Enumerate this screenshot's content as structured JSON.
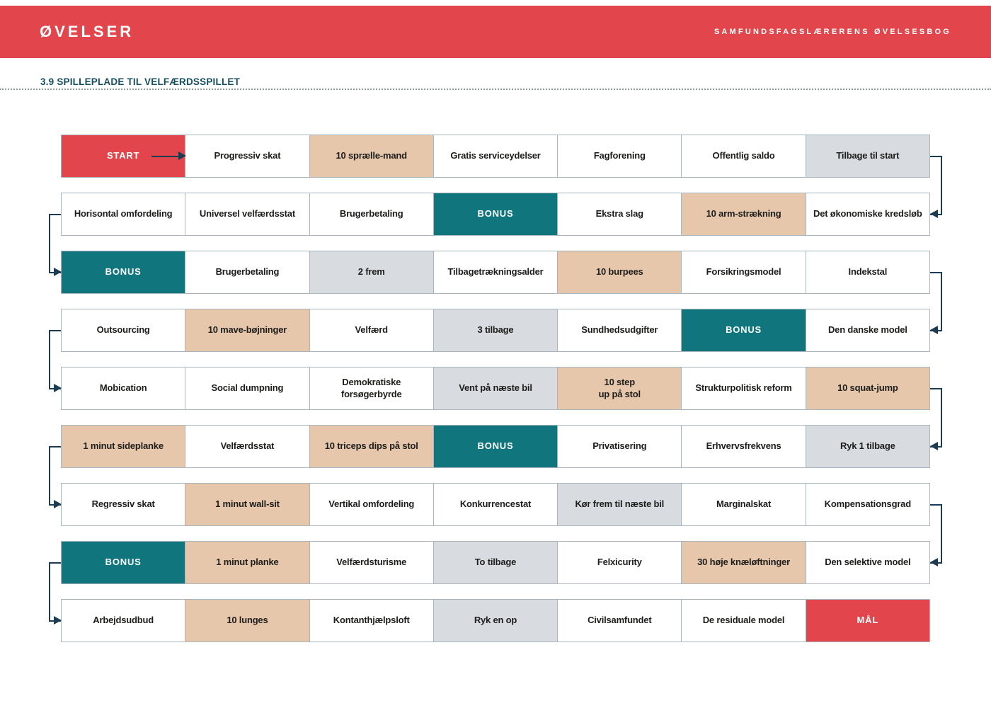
{
  "banner": {
    "logo": "ØVELSER",
    "book_title": "SAMFUNDSFAGSLÆRERENS ØVELSESBOG"
  },
  "page": {
    "heading": "3.9 SPILLEPLADE TIL VELFÆRDSSPILLET"
  },
  "colors": {
    "banner_red": "#e2454b",
    "teal": "#10757d",
    "tan": "#e6c7ab",
    "gray": "#d8dce0",
    "border": "#a8b7be",
    "arrow": "#1d3c52",
    "heading_text": "#174f5f",
    "cell_text": "#1d1d1b"
  },
  "board": {
    "rows": [
      [
        {
          "label": "START",
          "type": "start"
        },
        {
          "label": "Progressiv skat",
          "type": "concept"
        },
        {
          "label": "10 sprælle-mand",
          "type": "exercise"
        },
        {
          "label": "Gratis serviceydelser",
          "type": "concept"
        },
        {
          "label": "Fagforening",
          "type": "concept"
        },
        {
          "label": "Offentlig saldo",
          "type": "concept"
        },
        {
          "label": "Tilbage til start",
          "type": "move"
        }
      ],
      [
        {
          "label": "Horisontal omfordeling",
          "type": "concept"
        },
        {
          "label": "Universel velfærdsstat",
          "type": "concept"
        },
        {
          "label": "Brugerbetaling",
          "type": "concept"
        },
        {
          "label": "BONUS",
          "type": "bonus"
        },
        {
          "label": "Ekstra slag",
          "type": "concept"
        },
        {
          "label": "10 arm-strækning",
          "type": "exercise"
        },
        {
          "label": "Det økonomiske kredsløb",
          "type": "concept"
        }
      ],
      [
        {
          "label": "BONUS",
          "type": "bonus"
        },
        {
          "label": "Brugerbetaling",
          "type": "concept"
        },
        {
          "label": "2 frem",
          "type": "move"
        },
        {
          "label": "Tilbagetrækningsalder",
          "type": "concept"
        },
        {
          "label": "10 burpees",
          "type": "exercise"
        },
        {
          "label": "Forsikringsmodel",
          "type": "concept"
        },
        {
          "label": "Indekstal",
          "type": "concept"
        }
      ],
      [
        {
          "label": "Outsourcing",
          "type": "concept"
        },
        {
          "label": "10 mave-bøjninger",
          "type": "exercise"
        },
        {
          "label": "Velfærd",
          "type": "concept"
        },
        {
          "label": "3 tilbage",
          "type": "move"
        },
        {
          "label": "Sundhedsudgifter",
          "type": "concept"
        },
        {
          "label": "BONUS",
          "type": "bonus"
        },
        {
          "label": "Den danske model",
          "type": "concept"
        }
      ],
      [
        {
          "label": "Mobication",
          "type": "concept"
        },
        {
          "label": "Social dumpning",
          "type": "concept"
        },
        {
          "label": "Demokratiske\nforsøgerbyrde",
          "type": "concept"
        },
        {
          "label": "Vent på næste bil",
          "type": "move"
        },
        {
          "label": "10 step\nup på stol",
          "type": "exercise"
        },
        {
          "label": "Strukturpolitisk reform",
          "type": "concept"
        },
        {
          "label": "10 squat-jump",
          "type": "exercise"
        }
      ],
      [
        {
          "label": "1 minut sideplanke",
          "type": "exercise"
        },
        {
          "label": "Velfærdsstat",
          "type": "concept"
        },
        {
          "label": "10 triceps dips på stol",
          "type": "exercise"
        },
        {
          "label": "BONUS",
          "type": "bonus"
        },
        {
          "label": "Privatisering",
          "type": "concept"
        },
        {
          "label": "Erhvervsfrekvens",
          "type": "concept"
        },
        {
          "label": "Ryk 1 tilbage",
          "type": "move"
        }
      ],
      [
        {
          "label": "Regressiv skat",
          "type": "concept"
        },
        {
          "label": "1 minut wall-sit",
          "type": "exercise"
        },
        {
          "label": "Vertikal omfordeling",
          "type": "concept"
        },
        {
          "label": "Konkurrencestat",
          "type": "concept"
        },
        {
          "label": "Kør frem til næste bil",
          "type": "move"
        },
        {
          "label": "Marginalskat",
          "type": "concept"
        },
        {
          "label": "Kompensationsgrad",
          "type": "concept"
        }
      ],
      [
        {
          "label": "BONUS",
          "type": "bonus"
        },
        {
          "label": "1 minut planke",
          "type": "exercise"
        },
        {
          "label": "Velfærdsturisme",
          "type": "concept"
        },
        {
          "label": "To tilbage",
          "type": "move"
        },
        {
          "label": "Felxicurity",
          "type": "concept"
        },
        {
          "label": "30 høje knæløftninger",
          "type": "exercise"
        },
        {
          "label": "Den selektive model",
          "type": "concept"
        }
      ],
      [
        {
          "label": "Arbejdsudbud",
          "type": "concept"
        },
        {
          "label": "10 lunges",
          "type": "exercise"
        },
        {
          "label": "Kontanthjælpsloft",
          "type": "concept"
        },
        {
          "label": "Ryk en op",
          "type": "move"
        },
        {
          "label": "Civilsamfundet",
          "type": "concept"
        },
        {
          "label": "De residuale model",
          "type": "concept"
        },
        {
          "label": "MÅL",
          "type": "goal"
        }
      ]
    ],
    "connectors": {
      "start_arrow": {
        "from_row": 0,
        "from_cell": 0,
        "to_cell": 1
      },
      "right_side": [
        [
          0,
          1
        ],
        [
          2,
          3
        ],
        [
          4,
          5
        ],
        [
          6,
          7
        ]
      ],
      "left_side": [
        [
          1,
          2
        ],
        [
          3,
          4
        ],
        [
          5,
          6
        ],
        [
          7,
          8
        ]
      ]
    }
  }
}
